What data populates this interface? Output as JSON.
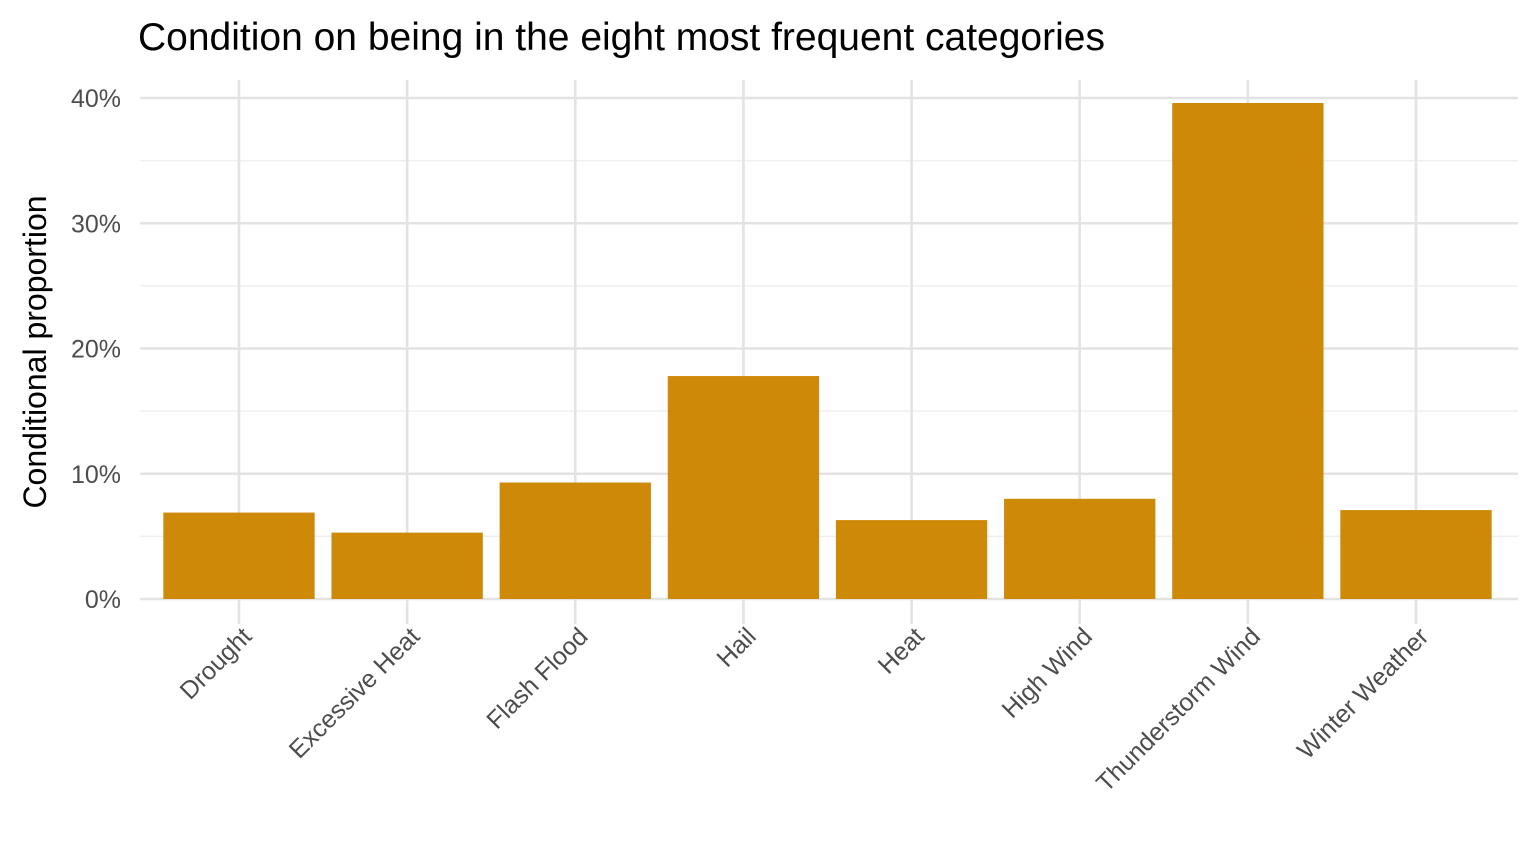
{
  "chart_data": {
    "type": "bar",
    "title": "Condition on being in the eight most frequent categories",
    "xlabel": "",
    "ylabel": "Conditional proportion",
    "categories": [
      "Drought",
      "Excessive Heat",
      "Flash Flood",
      "Hail",
      "Heat",
      "High Wind",
      "Thunderstorm Wind",
      "Winter Weather"
    ],
    "values": [
      6.9,
      5.3,
      9.3,
      17.8,
      6.3,
      8.0,
      39.6,
      7.1
    ],
    "value_unit": "%",
    "ylim": [
      0,
      40
    ],
    "y_ticks": [
      0,
      10,
      20,
      30,
      40
    ],
    "y_tick_labels": [
      "0%",
      "10%",
      "20%",
      "30%",
      "40%"
    ],
    "bar_color": "#CD8907",
    "grid": true,
    "legend": "none"
  }
}
